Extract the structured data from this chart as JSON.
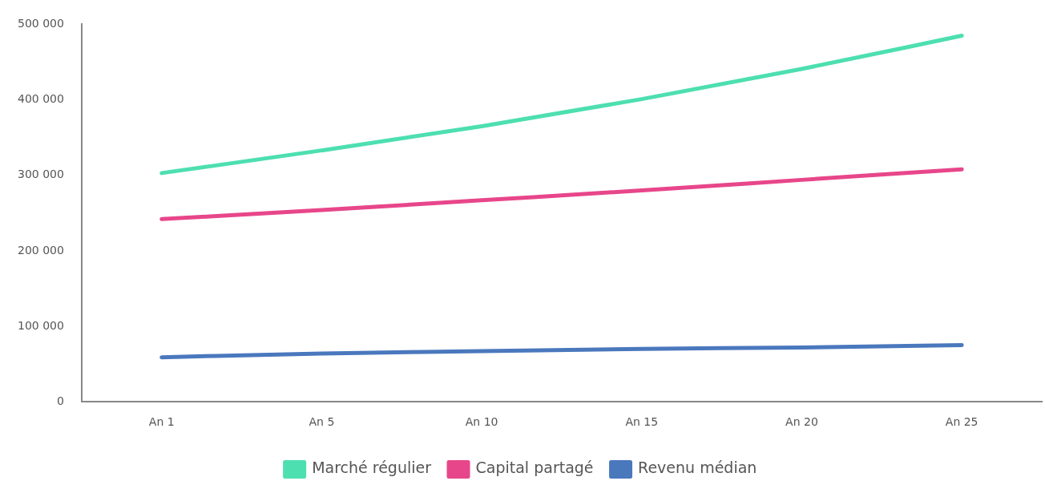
{
  "chart_data": {
    "type": "line",
    "categories": [
      "An 1",
      "An 5",
      "An 10",
      "An 15",
      "An 20",
      "An 25"
    ],
    "series": [
      {
        "name": "Marché régulier",
        "color": "#4ddfb0",
        "values": [
          303000,
          333000,
          365000,
          401000,
          441000,
          485000
        ]
      },
      {
        "name": "Capital partagé",
        "color": "#e8468a",
        "values": [
          242000,
          254000,
          267000,
          280000,
          294000,
          308000
        ]
      },
      {
        "name": "Revenu médian",
        "color": "#4a78bd",
        "values": [
          59000,
          64000,
          67000,
          70000,
          72000,
          75000
        ]
      }
    ],
    "ylim": [
      0,
      500000
    ],
    "yticks": [
      {
        "value": 0,
        "label": "0"
      },
      {
        "value": 100000,
        "label": "100 000"
      },
      {
        "value": 200000,
        "label": "200 000"
      },
      {
        "value": 300000,
        "label": "300 000"
      },
      {
        "value": 400000,
        "label": "400 000"
      },
      {
        "value": 500000,
        "label": "500 000"
      }
    ],
    "grid": false,
    "legend": "bottom",
    "marker": "none",
    "line_style": "solid"
  }
}
